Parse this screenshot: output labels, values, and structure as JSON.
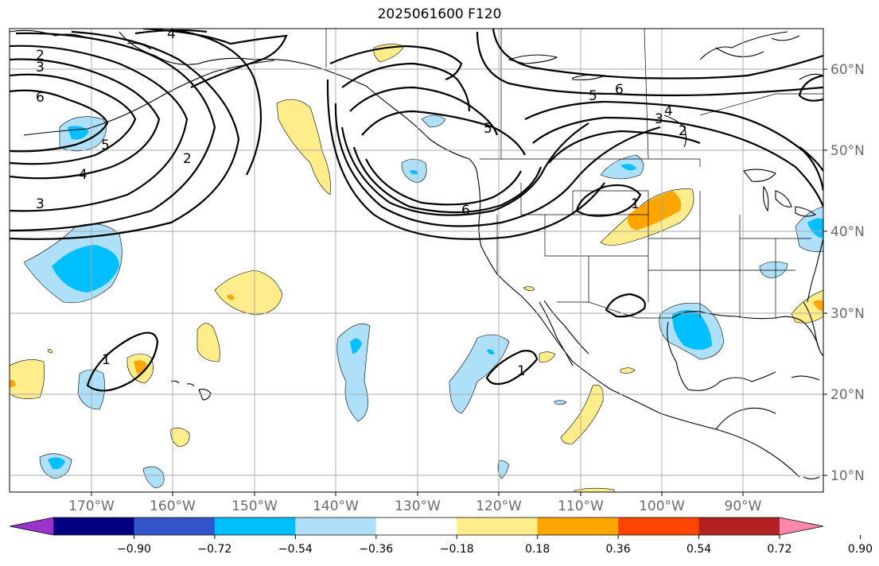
{
  "title": "2025061600 F120",
  "map": {
    "projection": "plate-carree",
    "lon_range": [
      -179,
      -80
    ],
    "lat_range": [
      8,
      65
    ],
    "gridlines": true,
    "lon_ticks": [
      "170°W",
      "160°W",
      "150°W",
      "140°W",
      "130°W",
      "120°W",
      "110°W",
      "100°W",
      "90°W"
    ],
    "lat_ticks": [
      "60°N",
      "50°N",
      "40°N",
      "30°N",
      "20°N",
      "10°N"
    ],
    "contour_labels": [
      "4",
      "2",
      "3",
      "6",
      "5",
      "4",
      "3",
      "2",
      "5",
      "6",
      "5",
      "6",
      "4",
      "3",
      "2",
      "1",
      "1",
      "1"
    ],
    "filled_field_levels": [
      -0.9,
      -0.72,
      -0.54,
      -0.36,
      -0.18,
      0.18,
      0.36,
      0.54,
      0.72,
      0.9
    ]
  },
  "colorbar": {
    "colors": [
      "#9933cc",
      "#000080",
      "#3355cc",
      "#00bfff",
      "#aee0fa",
      "#ffffff",
      "#ffec8b",
      "#ffa500",
      "#ff4500",
      "#b22222",
      "#ff88aa"
    ],
    "labels": [
      "−0.90",
      "−0.72",
      "−0.54",
      "−0.36",
      "−0.18",
      "0.18",
      "0.36",
      "0.54",
      "0.72",
      "0.90"
    ],
    "extend": "both"
  }
}
